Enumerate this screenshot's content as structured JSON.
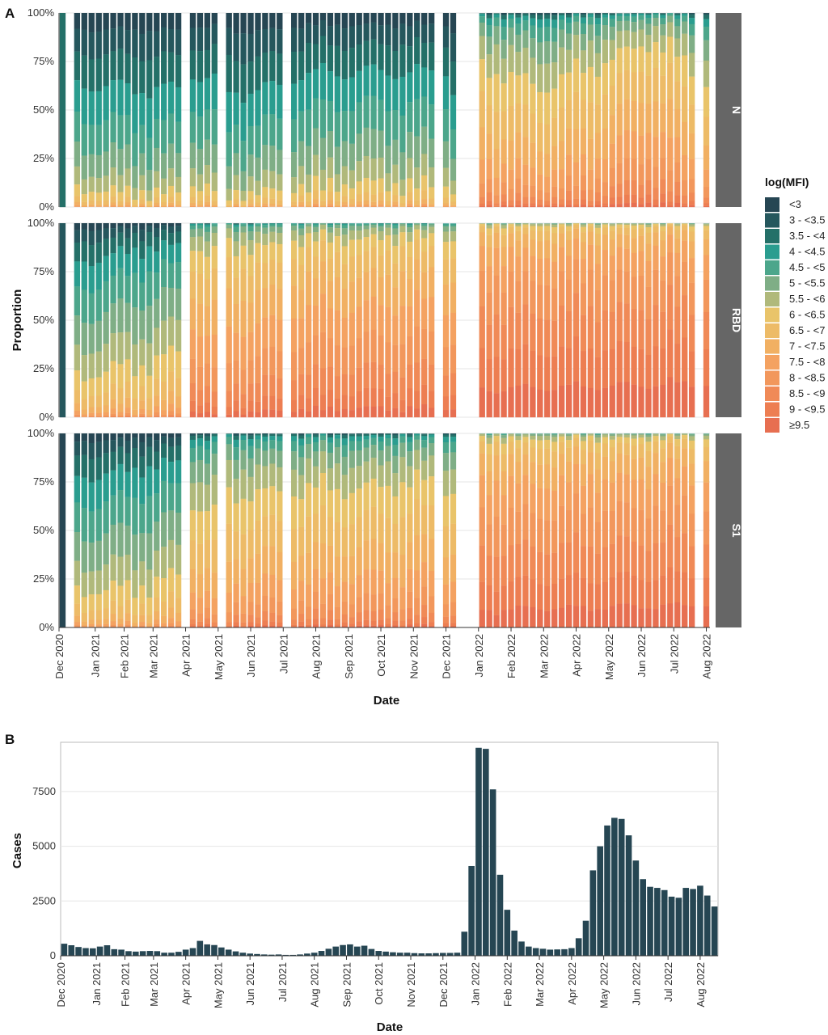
{
  "figure": {
    "panel_a_letter": "A",
    "panel_b_letter": "B"
  },
  "colors": {
    "background": "#ffffff",
    "gridline": "#e5e5e5",
    "strip": "#666666",
    "case_bar": "#264653"
  },
  "legend": {
    "title": "log(MFI)",
    "placement": "right",
    "entries": [
      {
        "label": "<3",
        "color": "#264653"
      },
      {
        "label": "3 - <3.5",
        "color": "#25575d"
      },
      {
        "label": "3.5 - <4",
        "color": "#247068"
      },
      {
        "label": "4 - <4.5",
        "color": "#2a9d8f"
      },
      {
        "label": "4.5 - <5",
        "color": "#4ca68b"
      },
      {
        "label": "5 - <5.5",
        "color": "#7fae86"
      },
      {
        "label": "5.5 - <6",
        "color": "#b0b97b"
      },
      {
        "label": "6 - <6.5",
        "color": "#e9c46a"
      },
      {
        "label": "6.5 - <7",
        "color": "#edbb67"
      },
      {
        "label": "7 - <7.5",
        "color": "#f1b063"
      },
      {
        "label": "7.5 - <8",
        "color": "#f4a261"
      },
      {
        "label": "8 - <8.5",
        "color": "#f2975c"
      },
      {
        "label": "8.5 - <9",
        "color": "#f08a57"
      },
      {
        "label": "9 - <9.5",
        "color": "#ed7e52"
      },
      {
        "label": "≥9.5",
        "color": "#e76f51"
      }
    ]
  },
  "chart_data": [
    {
      "type": "bar",
      "stacked": true,
      "panel": "A",
      "xlabel": "Date",
      "ylabel": "Proportion",
      "ylim": [
        0,
        1
      ],
      "y_tick_labels": [
        "0%",
        "25%",
        "50%",
        "75%",
        "100%"
      ],
      "x_tick_labels": [
        "Dec 2020",
        "Jan 2021",
        "Feb 2021",
        "Mar 2021",
        "Apr 2021",
        "May 2021",
        "Jun 2021",
        "Jul 2021",
        "Aug 2021",
        "Sep 2021",
        "Oct 2021",
        "Nov 2021",
        "Dec 2021",
        "Jan 2022",
        "Feb 2022",
        "Mar 2022",
        "Apr 2022",
        "May 2022",
        "Jun 2022",
        "Jul 2022",
        "Aug 2022"
      ],
      "x_tick_positions_week": [
        1,
        6,
        10,
        14,
        18.5,
        23,
        27.5,
        32,
        36.5,
        41,
        45.5,
        50,
        54.5,
        59,
        63.5,
        68,
        72.5,
        77,
        81.5,
        86,
        90.5
      ],
      "weeks_total": 90,
      "missing_weeks": [
        2,
        18,
        23,
        32,
        53,
        56,
        57,
        58,
        89
      ],
      "facets": [
        {
          "label": "N",
          "periods": [
            {
              "from": 1,
              "to": 1,
              "stops": [
                [
                  0.0,
                  0.0
                ],
                [
                  0.5,
                  0.0
                ],
                [
                  1.0,
                  0.0
                ]
              ],
              "dominant": "3.5 - <4"
            },
            {
              "from": 3,
              "to": 17,
              "stops": [
                [
                  0.0,
                  0.65
                ],
                [
                  0.5,
                  0.62
                ],
                [
                  1.0,
                  0.6
                ]
              ]
            },
            {
              "from": 19,
              "to": 22,
              "stops": [
                [
                  0.0,
                  0.75
                ],
                [
                  0.5,
                  0.7
                ],
                [
                  1.0,
                  0.68
                ]
              ]
            },
            {
              "from": 24,
              "to": 31,
              "stops": [
                [
                  0.0,
                  0.58
                ],
                [
                  0.5,
                  0.6
                ],
                [
                  1.0,
                  0.62
                ]
              ]
            },
            {
              "from": 33,
              "to": 52,
              "stops": [
                [
                  0.0,
                  0.72
                ],
                [
                  0.5,
                  0.76
                ],
                [
                  1.0,
                  0.74
                ]
              ]
            },
            {
              "from": 54,
              "to": 55,
              "stops": [
                [
                  0.0,
                  0.78
                ],
                [
                  1.0,
                  0.6
                ]
              ]
            },
            {
              "from": 59,
              "to": 90,
              "stops": [
                [
                  0.0,
                  1.7
                ],
                [
                  0.25,
                  1.55
                ],
                [
                  0.5,
                  1.7
                ],
                [
                  0.75,
                  1.95
                ],
                [
                  1.0,
                  1.6
                ]
              ]
            }
          ]
        },
        {
          "label": "RBD",
          "periods": [
            {
              "from": 1,
              "to": 1,
              "stops": [
                [
                  0.0,
                  0.0
                ],
                [
                  1.0,
                  0.0
                ]
              ],
              "dominant": "3 - <3.5"
            },
            {
              "from": 3,
              "to": 17,
              "stops": [
                [
                  0.0,
                  0.95
                ],
                [
                  0.5,
                  1.05
                ],
                [
                  1.0,
                  1.15
                ]
              ]
            },
            {
              "from": 19,
              "to": 22,
              "stops": [
                [
                  0.0,
                  2.05
                ],
                [
                  0.5,
                  1.95
                ],
                [
                  1.0,
                  1.9
                ]
              ]
            },
            {
              "from": 24,
              "to": 31,
              "stops": [
                [
                  0.0,
                  1.98
                ],
                [
                  0.5,
                  2.02
                ],
                [
                  1.0,
                  2.03
                ]
              ]
            },
            {
              "from": 33,
              "to": 52,
              "stops": [
                [
                  0.0,
                  2.12
                ],
                [
                  0.5,
                  2.15
                ],
                [
                  1.0,
                  2.18
                ]
              ]
            },
            {
              "from": 54,
              "to": 55,
              "stops": [
                [
                  0.0,
                  2.15
                ],
                [
                  1.0,
                  2.15
                ]
              ]
            },
            {
              "from": 59,
              "to": 90,
              "stops": [
                [
                  0.0,
                  2.6
                ],
                [
                  0.5,
                  2.65
                ],
                [
                  1.0,
                  2.7
                ]
              ]
            }
          ]
        },
        {
          "label": "S1",
          "periods": [
            {
              "from": 1,
              "to": 1,
              "stops": [
                [
                  0.0,
                  0.0
                ],
                [
                  1.0,
                  0.0
                ]
              ],
              "dominant": "<3"
            },
            {
              "from": 3,
              "to": 17,
              "stops": [
                [
                  0.0,
                  0.9
                ],
                [
                  0.5,
                  0.95
                ],
                [
                  1.0,
                  1.05
                ]
              ]
            },
            {
              "from": 19,
              "to": 22,
              "stops": [
                [
                  0.0,
                  1.6
                ],
                [
                  0.5,
                  1.55
                ],
                [
                  1.0,
                  1.5
                ]
              ]
            },
            {
              "from": 24,
              "to": 31,
              "stops": [
                [
                  0.0,
                  1.62
                ],
                [
                  0.5,
                  1.67
                ],
                [
                  1.0,
                  1.65
                ]
              ]
            },
            {
              "from": 33,
              "to": 52,
              "stops": [
                [
                  0.0,
                  1.68
                ],
                [
                  0.5,
                  1.7
                ],
                [
                  1.0,
                  1.75
                ]
              ]
            },
            {
              "from": 54,
              "to": 55,
              "stops": [
                [
                  0.0,
                  1.7
                ],
                [
                  1.0,
                  1.7
                ]
              ]
            },
            {
              "from": 59,
              "to": 90,
              "stops": [
                [
                  0.0,
                  2.4
                ],
                [
                  0.5,
                  2.45
                ],
                [
                  1.0,
                  2.5
                ]
              ]
            }
          ]
        }
      ]
    },
    {
      "type": "bar",
      "panel": "B",
      "xlabel": "Date",
      "ylabel": "Cases",
      "ylim": [
        0,
        9750
      ],
      "y_ticks": [
        0,
        2500,
        5000,
        7500
      ],
      "y_tick_labels": [
        "0",
        "2500",
        "5000",
        "7500"
      ],
      "grid": true,
      "x_tick_labels": [
        "Dec 2020",
        "Jan 2021",
        "Feb 2021",
        "Mar 2021",
        "Apr 2021",
        "May 2021",
        "Jun 2021",
        "Jul 2021",
        "Aug 2021",
        "Sep 2021",
        "Oct 2021",
        "Nov 2021",
        "Dec 2021",
        "Jan 2022",
        "Feb 2022",
        "Mar 2022",
        "Apr 2022",
        "May 2022",
        "Jun 2022",
        "Jul 2022",
        "Aug 2022"
      ],
      "x_tick_positions_week": [
        1,
        6,
        10,
        14,
        18.5,
        23,
        27.5,
        32,
        36.5,
        41,
        45.5,
        50,
        54.5,
        59,
        63.5,
        68,
        72.5,
        77,
        81.5,
        86,
        90.5
      ],
      "weekly_cases": [
        550,
        480,
        400,
        350,
        340,
        420,
        480,
        300,
        280,
        210,
        190,
        210,
        220,
        210,
        140,
        140,
        180,
        280,
        350,
        680,
        520,
        490,
        380,
        280,
        200,
        140,
        100,
        80,
        60,
        50,
        60,
        40,
        40,
        60,
        100,
        140,
        220,
        320,
        420,
        490,
        520,
        420,
        460,
        310,
        220,
        190,
        160,
        140,
        140,
        120,
        110,
        110,
        120,
        130,
        130,
        140,
        1100,
        4100,
        9500,
        9450,
        7600,
        3700,
        2100,
        1150,
        650,
        420,
        350,
        320,
        280,
        290,
        300,
        350,
        800,
        1600,
        3900,
        5000,
        5950,
        6300,
        6250,
        5500,
        4350,
        3500,
        3150,
        3100,
        3000,
        2700,
        2650,
        3100,
        3050,
        3200,
        2750,
        2250
      ]
    }
  ]
}
